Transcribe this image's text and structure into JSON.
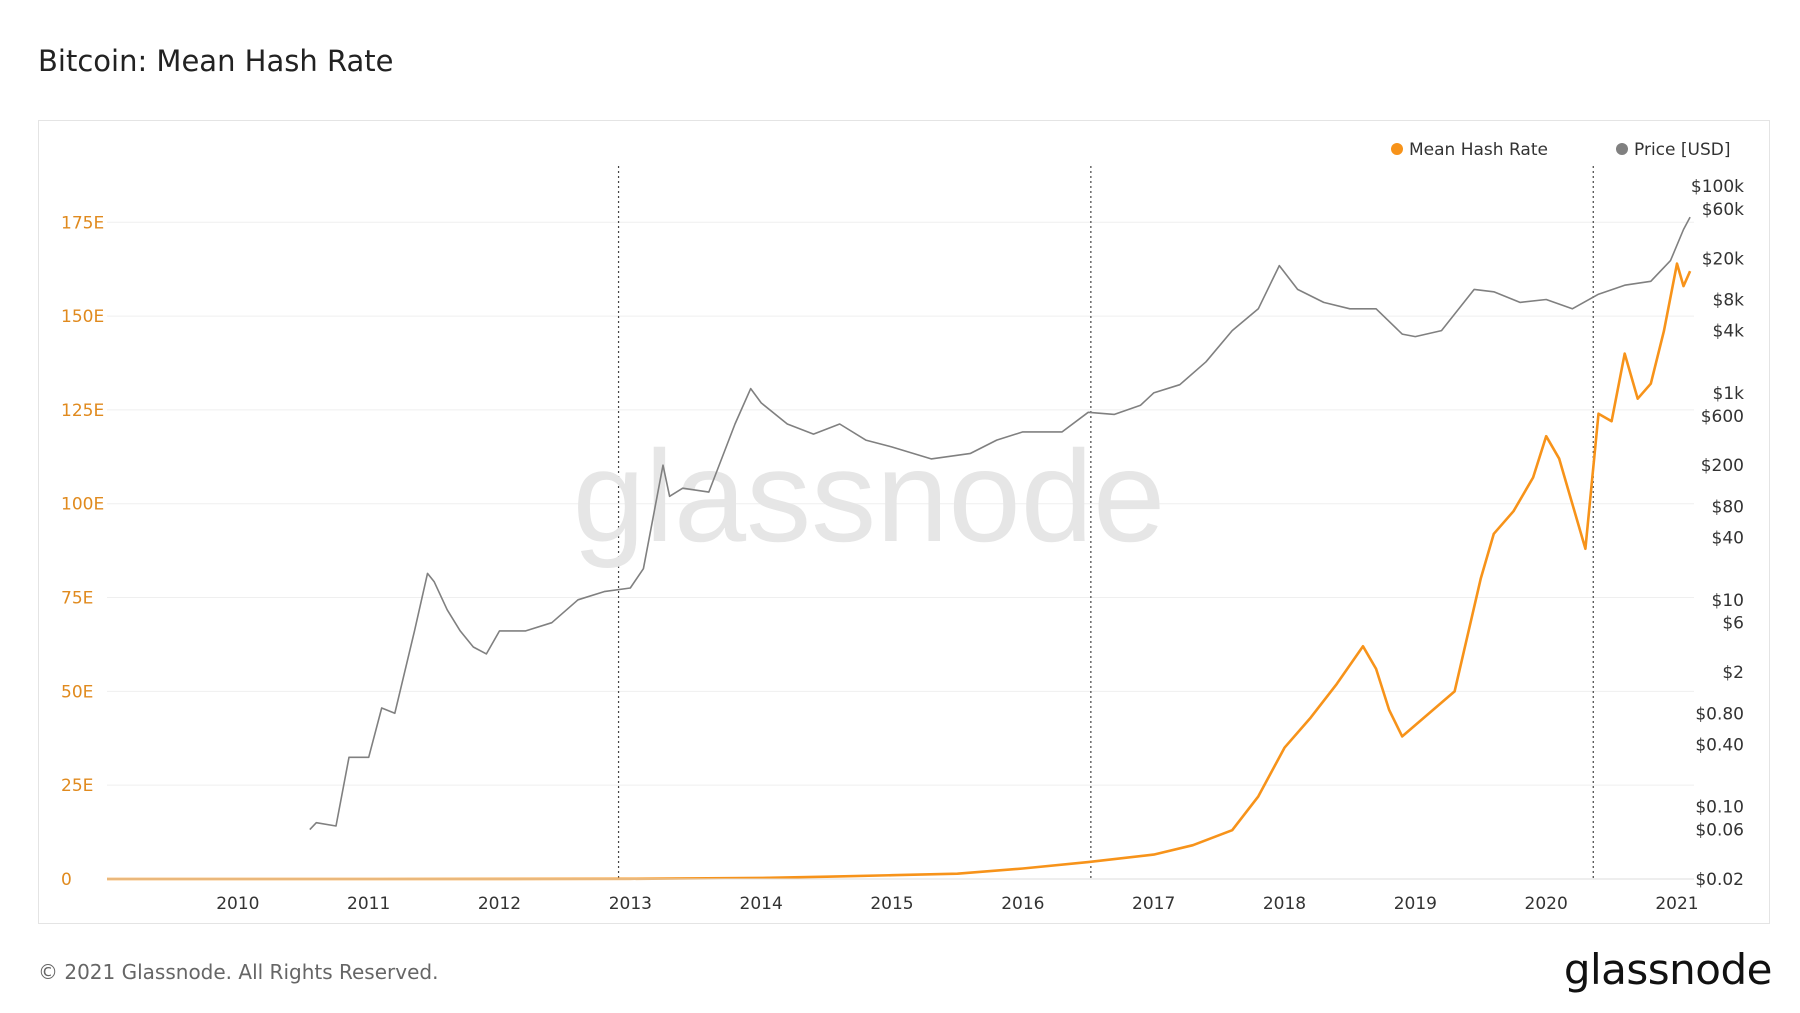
{
  "header": {
    "title": "Bitcoin: Mean Hash Rate"
  },
  "footer": {
    "copyright": "© 2021 Glassnode. All Rights Reserved.",
    "brand": "glassnode"
  },
  "watermark": "glassnode",
  "chart_data": {
    "type": "line",
    "legend": {
      "placement": "top-right",
      "entries": [
        {
          "name": "Mean Hash Rate",
          "color": "#f7931a"
        },
        {
          "name": "Price [USD]",
          "color": "#808080"
        }
      ]
    },
    "x_axis": {
      "range": [
        2009.0,
        2021.13
      ],
      "ticks": [
        "2010",
        "2011",
        "2012",
        "2013",
        "2014",
        "2015",
        "2016",
        "2017",
        "2018",
        "2019",
        "2020",
        "2021"
      ]
    },
    "y_left": {
      "range": [
        0,
        190
      ],
      "unit": "E",
      "ticks": [
        {
          "value": 0,
          "label": "0"
        },
        {
          "value": 25,
          "label": "25E"
        },
        {
          "value": 50,
          "label": "50E"
        },
        {
          "value": 75,
          "label": "75E"
        },
        {
          "value": 100,
          "label": "100E"
        },
        {
          "value": 125,
          "label": "125E"
        },
        {
          "value": 150,
          "label": "150E"
        },
        {
          "value": 175,
          "label": "175E"
        }
      ]
    },
    "y_right": {
      "scale": "log",
      "range": [
        0.02,
        100000
      ],
      "ticks": [
        {
          "value": 100000,
          "label": "$100k"
        },
        {
          "value": 60000,
          "label": "$60k"
        },
        {
          "value": 20000,
          "label": "$20k"
        },
        {
          "value": 8000,
          "label": "$8k"
        },
        {
          "value": 4000,
          "label": "$4k"
        },
        {
          "value": 1000,
          "label": "$1k"
        },
        {
          "value": 600,
          "label": "$600"
        },
        {
          "value": 200,
          "label": "$200"
        },
        {
          "value": 80,
          "label": "$80"
        },
        {
          "value": 40,
          "label": "$40"
        },
        {
          "value": 10,
          "label": "$10"
        },
        {
          "value": 6,
          "label": "$6"
        },
        {
          "value": 2,
          "label": "$2"
        },
        {
          "value": 0.8,
          "label": "$0.80"
        },
        {
          "value": 0.4,
          "label": "$0.40"
        },
        {
          "value": 0.1,
          "label": "$0.10"
        },
        {
          "value": 0.06,
          "label": "$0.06"
        },
        {
          "value": 0.02,
          "label": "$0.02"
        }
      ]
    },
    "halving_markers": [
      2012.91,
      2016.52,
      2020.36
    ],
    "series": [
      {
        "name": "Mean Hash Rate",
        "axis": "left",
        "color": "#f7931a",
        "x": [
          2009.0,
          2010.0,
          2011.0,
          2012.0,
          2013.0,
          2014.0,
          2014.5,
          2015.0,
          2015.5,
          2016.0,
          2016.5,
          2017.0,
          2017.3,
          2017.6,
          2017.8,
          2018.0,
          2018.2,
          2018.4,
          2018.6,
          2018.7,
          2018.8,
          2018.9,
          2019.0,
          2019.1,
          2019.3,
          2019.5,
          2019.6,
          2019.75,
          2019.9,
          2020.0,
          2020.1,
          2020.2,
          2020.3,
          2020.4,
          2020.5,
          2020.6,
          2020.7,
          2020.8,
          2020.9,
          2021.0,
          2021.05,
          2021.1
        ],
        "y": [
          0,
          0.01,
          0.01,
          0.02,
          0.05,
          0.3,
          0.6,
          1.0,
          1.4,
          2.8,
          4.5,
          6.5,
          9,
          13,
          22,
          35,
          43,
          52,
          62,
          56,
          45,
          38,
          41,
          44,
          50,
          80,
          92,
          98,
          107,
          118,
          112,
          100,
          88,
          124,
          122,
          140,
          128,
          132,
          146,
          164,
          158,
          162
        ]
      },
      {
        "name": "Price [USD]",
        "axis": "right",
        "color": "#808080",
        "x": [
          2010.55,
          2010.6,
          2010.75,
          2010.85,
          2010.9,
          2011.0,
          2011.1,
          2011.2,
          2011.35,
          2011.45,
          2011.5,
          2011.6,
          2011.7,
          2011.8,
          2011.9,
          2012.0,
          2012.2,
          2012.4,
          2012.6,
          2012.8,
          2013.0,
          2013.1,
          2013.25,
          2013.3,
          2013.4,
          2013.6,
          2013.8,
          2013.92,
          2014.0,
          2014.2,
          2014.4,
          2014.6,
          2014.8,
          2015.0,
          2015.3,
          2015.6,
          2015.8,
          2016.0,
          2016.3,
          2016.5,
          2016.7,
          2016.9,
          2017.0,
          2017.2,
          2017.4,
          2017.6,
          2017.8,
          2017.96,
          2018.1,
          2018.3,
          2018.5,
          2018.7,
          2018.9,
          2019.0,
          2019.2,
          2019.45,
          2019.6,
          2019.8,
          2020.0,
          2020.2,
          2020.4,
          2020.6,
          2020.8,
          2020.95,
          2021.05,
          2021.1
        ],
        "y": [
          0.06,
          0.07,
          0.065,
          0.3,
          0.3,
          0.3,
          0.9,
          0.8,
          5,
          18,
          15,
          8,
          5,
          3.5,
          3,
          5,
          5,
          6,
          10,
          12,
          13,
          20,
          200,
          100,
          120,
          110,
          500,
          1100,
          800,
          500,
          400,
          500,
          350,
          300,
          230,
          260,
          350,
          420,
          420,
          650,
          620,
          760,
          1000,
          1200,
          2000,
          4000,
          6500,
          17000,
          10000,
          7500,
          6500,
          6500,
          3700,
          3500,
          4000,
          10000,
          9500,
          7500,
          8000,
          6500,
          9000,
          11000,
          12000,
          19000,
          38000,
          50000
        ]
      }
    ]
  }
}
